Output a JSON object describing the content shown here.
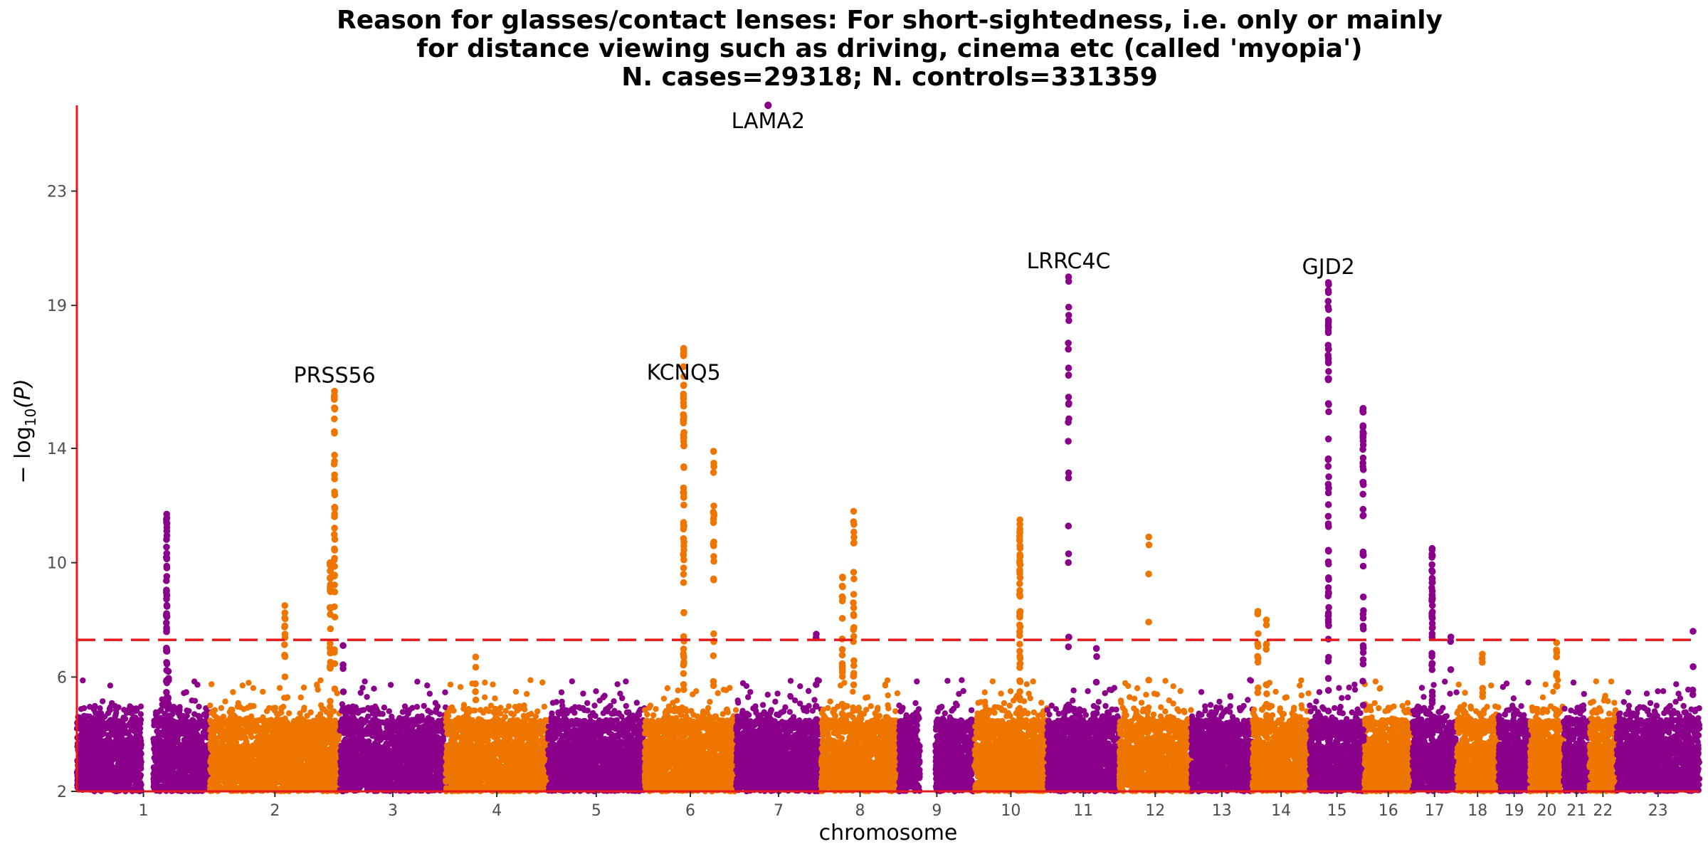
{
  "chart_data": {
    "type": "scatter",
    "title_lines": [
      "Reason for glasses/contact lenses: For short-sightedness, i.e. only or mainly",
      "for distance viewing such as driving, cinema etc (called 'myopia')",
      "N. cases=29318; N. controls=331359"
    ],
    "xlabel": "chromosome",
    "ylabel_base": "− log",
    "ylabel_sub": "10",
    "ylabel_tail": "(P)",
    "ylim": [
      2,
      26
    ],
    "yticks": [
      2,
      6,
      10,
      14,
      19,
      23
    ],
    "significance_threshold": 7.3,
    "colors": {
      "odd": "#8B008B",
      "even": "#EE7600",
      "threshold": "#E41A1C",
      "axis": "#E41A1C"
    },
    "chromosomes": [
      {
        "label": "1",
        "length": 249
      },
      {
        "label": "2",
        "length": 243
      },
      {
        "label": "3",
        "length": 198
      },
      {
        "label": "4",
        "length": 191
      },
      {
        "label": "5",
        "length": 181
      },
      {
        "label": "6",
        "length": 171
      },
      {
        "label": "7",
        "length": 159
      },
      {
        "label": "8",
        "length": 146
      },
      {
        "label": "9",
        "length": 141
      },
      {
        "label": "10",
        "length": 136
      },
      {
        "label": "11",
        "length": 135
      },
      {
        "label": "12",
        "length": 134
      },
      {
        "label": "13",
        "length": 115
      },
      {
        "label": "14",
        "length": 107
      },
      {
        "label": "15",
        "length": 102
      },
      {
        "label": "16",
        "length": 90
      },
      {
        "label": "17",
        "length": 83
      },
      {
        "label": "18",
        "length": 78
      },
      {
        "label": "19",
        "length": 59
      },
      {
        "label": "20",
        "length": 63
      },
      {
        "label": "21",
        "length": 48
      },
      {
        "label": "22",
        "length": 51
      },
      {
        "label": "23",
        "length": 155
      }
    ],
    "gaps": [
      {
        "chr": "1",
        "start": 121,
        "end": 143
      },
      {
        "chr": "9",
        "start": 39,
        "end": 68
      }
    ],
    "peaks": [
      {
        "chr": "1",
        "pos": 168,
        "max": 11.7,
        "n": 60
      },
      {
        "chr": "1",
        "pos": 171,
        "max": 6.2,
        "n": 10
      },
      {
        "chr": "2",
        "pos": 140,
        "max": 8.5,
        "n": 12
      },
      {
        "chr": "2",
        "pos": 225,
        "max": 10.0,
        "n": 30
      },
      {
        "chr": "2",
        "pos": 233,
        "max": 16.0,
        "n": 40
      },
      {
        "chr": "3",
        "pos": 6,
        "max": 7.1,
        "n": 6
      },
      {
        "chr": "4",
        "pos": 56,
        "max": 6.7,
        "n": 8
      },
      {
        "chr": "6",
        "pos": 73,
        "max": 17.5,
        "n": 70
      },
      {
        "chr": "6",
        "pos": 129,
        "max": 13.9,
        "n": 30
      },
      {
        "chr": "7",
        "pos": 150,
        "max": 7.5,
        "n": 5
      },
      {
        "chr": "8",
        "pos": 40,
        "max": 9.5,
        "n": 20
      },
      {
        "chr": "8",
        "pos": 61,
        "max": 11.8,
        "n": 30
      },
      {
        "chr": "10",
        "pos": 85,
        "max": 11.5,
        "n": 50
      },
      {
        "chr": "11",
        "pos": 40,
        "max": 20.0,
        "n": 25
      },
      {
        "chr": "11",
        "pos": 92,
        "max": 7.0,
        "n": 5
      },
      {
        "chr": "12",
        "pos": 55,
        "max": 10.9,
        "n": 4
      },
      {
        "chr": "14",
        "pos": 10,
        "max": 8.3,
        "n": 12
      },
      {
        "chr": "14",
        "pos": 26,
        "max": 8.0,
        "n": 12
      },
      {
        "chr": "15",
        "pos": 35,
        "max": 19.8,
        "n": 70
      },
      {
        "chr": "15",
        "pos": 100,
        "max": 15.4,
        "n": 45
      },
      {
        "chr": "17",
        "pos": 37,
        "max": 10.5,
        "n": 50
      },
      {
        "chr": "17",
        "pos": 72,
        "max": 7.4,
        "n": 4
      },
      {
        "chr": "18",
        "pos": 48,
        "max": 6.8,
        "n": 6
      },
      {
        "chr": "20",
        "pos": 50,
        "max": 7.2,
        "n": 15
      },
      {
        "chr": "23",
        "pos": 143,
        "max": 7.6,
        "n": 3
      }
    ],
    "top_points": [
      {
        "chr": "7",
        "pos": 60,
        "y": 26.0
      }
    ],
    "gene_labels": [
      {
        "text": "PRSS56",
        "chr": "2",
        "pos": 233,
        "y": 16.3
      },
      {
        "text": "KCNQ5",
        "chr": "6",
        "pos": 73,
        "y": 16.4
      },
      {
        "text": "LAMA2",
        "chr": "7",
        "pos": 60,
        "y": 25.2
      },
      {
        "text": "LRRC4C",
        "chr": "11",
        "pos": 40,
        "y": 20.3
      },
      {
        "text": "GJD2",
        "chr": "15",
        "pos": 35,
        "y": 20.1
      }
    ]
  }
}
